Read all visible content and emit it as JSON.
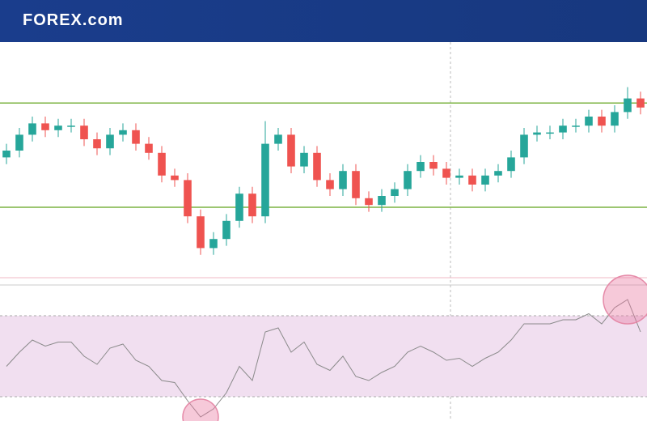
{
  "header": {
    "logo": "FOREX.com"
  },
  "chart_data": [
    {
      "type": "candlestick",
      "ylim": [
        0,
        100
      ],
      "up_color": "#26a69a",
      "down_color": "#ef5350",
      "levels": [
        76,
        30
      ],
      "level_color": "#7cb342",
      "open": [
        52,
        55,
        62,
        67,
        64,
        66,
        66,
        60,
        56,
        62,
        64,
        58,
        54,
        44,
        42,
        26,
        12,
        16,
        24,
        36,
        26,
        58,
        62,
        48,
        54,
        42,
        38,
        46,
        34,
        31,
        35,
        38,
        46,
        50,
        47,
        43,
        44,
        40,
        44,
        46,
        52,
        62,
        63,
        63,
        66,
        66,
        70,
        66,
        72,
        78
      ],
      "high": [
        58,
        65,
        70,
        70,
        69,
        69,
        69,
        63,
        65,
        67,
        67,
        61,
        57,
        47,
        45,
        29,
        19,
        27,
        39,
        39,
        68,
        65,
        65,
        57,
        57,
        45,
        49,
        49,
        37,
        38,
        41,
        49,
        53,
        53,
        50,
        47,
        47,
        47,
        49,
        55,
        65,
        66,
        66,
        69,
        69,
        73,
        73,
        75,
        83,
        81
      ],
      "low": [
        49,
        52,
        59,
        61,
        61,
        63,
        57,
        53,
        53,
        59,
        55,
        51,
        41,
        39,
        23,
        9,
        9,
        13,
        21,
        23,
        23,
        55,
        45,
        45,
        39,
        35,
        35,
        31,
        28,
        28,
        32,
        35,
        43,
        44,
        40,
        40,
        37,
        37,
        41,
        43,
        49,
        59,
        60,
        60,
        63,
        63,
        63,
        63,
        69,
        71
      ],
      "close": [
        55,
        62,
        67,
        64,
        66,
        66,
        60,
        56,
        62,
        64,
        58,
        54,
        44,
        42,
        26,
        12,
        16,
        24,
        36,
        26,
        58,
        62,
        48,
        54,
        42,
        38,
        46,
        34,
        31,
        35,
        38,
        46,
        50,
        47,
        43,
        44,
        40,
        44,
        46,
        52,
        62,
        63,
        63,
        66,
        66,
        70,
        66,
        72,
        78,
        74
      ]
    },
    {
      "type": "line",
      "ylim": [
        20,
        80
      ],
      "color": "#8a8a8a",
      "band": [
        30,
        70
      ],
      "band_color": "#f1dff0",
      "values": [
        45,
        52,
        58,
        55,
        57,
        57,
        50,
        46,
        54,
        56,
        48,
        45,
        38,
        37,
        28,
        20,
        24,
        32,
        45,
        38,
        62,
        64,
        52,
        57,
        46,
        43,
        50,
        40,
        38,
        42,
        45,
        52,
        55,
        52,
        48,
        49,
        45,
        49,
        52,
        58,
        66,
        66,
        66,
        68,
        68,
        71,
        66,
        74,
        78,
        62
      ]
    }
  ]
}
